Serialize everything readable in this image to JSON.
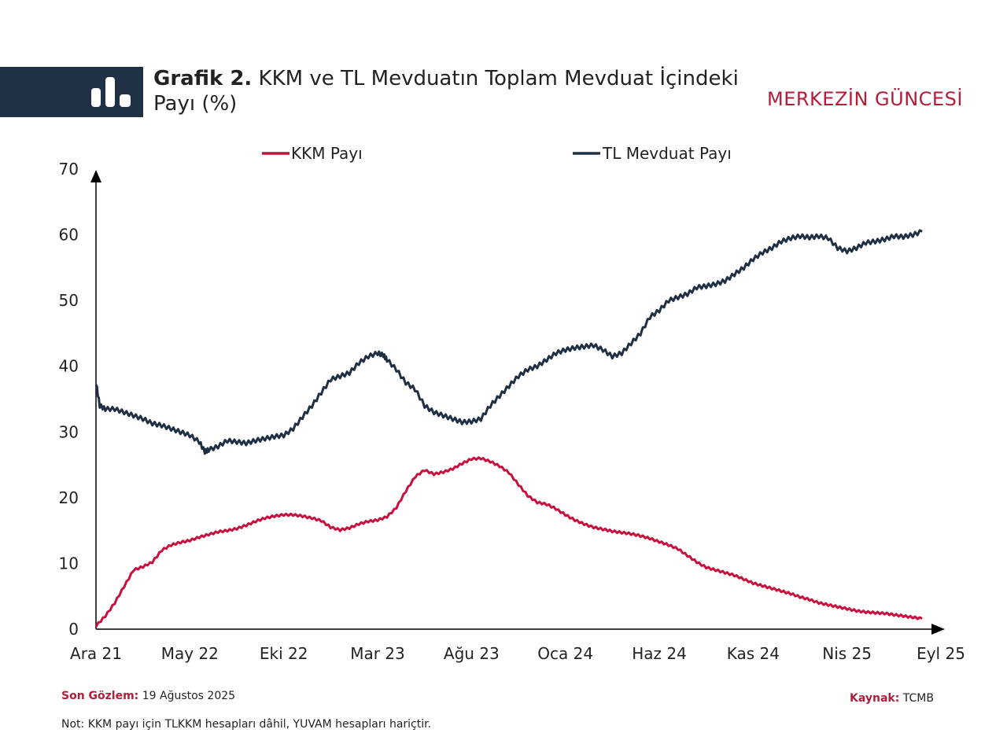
{
  "header": {
    "title_bold": "Grafik 2.",
    "title_text": " KKM ve TL Mevduatın Toplam Mevduat İçindeki Payı (%)",
    "brand": "MERKEZİN GÜNCESİ"
  },
  "footer": {
    "last_obs_label": "Son Gözlem:",
    "last_obs_value": " 19 Ağustos 2025",
    "source_label": "Kaynak:",
    "source_value": " TCMB",
    "note": "Not: KKM payı için TLKKM hesapları dâhil, YUVAM hesapları hariçtir."
  },
  "colors": {
    "kkm": "#c8103e",
    "tl": "#1f3045",
    "brand": "#b21e3a"
  },
  "chart_data": {
    "type": "line",
    "title": "KKM ve TL Mevduatın Toplam Mevduat İçindeki Payı (%)",
    "xlabel": "",
    "ylabel": "",
    "ylim": [
      0,
      70
    ],
    "yticks": [
      0,
      10,
      20,
      30,
      40,
      50,
      60,
      70
    ],
    "xlim": [
      0,
      45
    ],
    "xticks": [
      {
        "x": 0,
        "label": "Ara 21"
      },
      {
        "x": 5,
        "label": "May 22"
      },
      {
        "x": 10,
        "label": "Eki 22"
      },
      {
        "x": 15,
        "label": "Mar 23"
      },
      {
        "x": 20,
        "label": "Ağu 23"
      },
      {
        "x": 25,
        "label": "Oca 24"
      },
      {
        "x": 30,
        "label": "Haz 24"
      },
      {
        "x": 35,
        "label": "Kas 24"
      },
      {
        "x": 40,
        "label": "Nis 25"
      },
      {
        "x": 45,
        "label": "Eyl 25"
      }
    ],
    "legend_position": "top",
    "series": [
      {
        "name": "KKM Payı",
        "color": "#c8103e",
        "points": [
          [
            0,
            0.5
          ],
          [
            0.5,
            2
          ],
          [
            1,
            4
          ],
          [
            1.5,
            6.5
          ],
          [
            2,
            9
          ],
          [
            2.5,
            9.5
          ],
          [
            3,
            10.2
          ],
          [
            3.5,
            12
          ],
          [
            4,
            12.8
          ],
          [
            4.5,
            13.2
          ],
          [
            5,
            13.5
          ],
          [
            5.5,
            14
          ],
          [
            6,
            14.4
          ],
          [
            6.5,
            14.8
          ],
          [
            7,
            15
          ],
          [
            7.5,
            15.3
          ],
          [
            8,
            15.8
          ],
          [
            8.5,
            16.4
          ],
          [
            9,
            16.9
          ],
          [
            9.5,
            17.2
          ],
          [
            10,
            17.4
          ],
          [
            10.5,
            17.4
          ],
          [
            11,
            17.2
          ],
          [
            11.5,
            16.9
          ],
          [
            12,
            16.5
          ],
          [
            12.5,
            15.5
          ],
          [
            13,
            15.1
          ],
          [
            13.5,
            15.4
          ],
          [
            14,
            16
          ],
          [
            14.5,
            16.4
          ],
          [
            15,
            16.6
          ],
          [
            15.5,
            17.1
          ],
          [
            16,
            18.5
          ],
          [
            16.5,
            21
          ],
          [
            17,
            23.2
          ],
          [
            17.5,
            24.2
          ],
          [
            18,
            23.6
          ],
          [
            18.5,
            23.9
          ],
          [
            19,
            24.4
          ],
          [
            19.5,
            25.2
          ],
          [
            20,
            25.9
          ],
          [
            20.5,
            26
          ],
          [
            21,
            25.5
          ],
          [
            21.5,
            24.8
          ],
          [
            22,
            23.8
          ],
          [
            22.5,
            22
          ],
          [
            23,
            20.3
          ],
          [
            23.5,
            19.3
          ],
          [
            24,
            19
          ],
          [
            24.5,
            18.3
          ],
          [
            25,
            17.4
          ],
          [
            25.5,
            16.6
          ],
          [
            26,
            16
          ],
          [
            26.5,
            15.5
          ],
          [
            27,
            15.2
          ],
          [
            27.5,
            14.9
          ],
          [
            28,
            14.7
          ],
          [
            28.5,
            14.5
          ],
          [
            29,
            14.2
          ],
          [
            29.5,
            13.8
          ],
          [
            30,
            13.3
          ],
          [
            30.5,
            12.8
          ],
          [
            31,
            12.2
          ],
          [
            31.5,
            11.2
          ],
          [
            32,
            10.2
          ],
          [
            32.5,
            9.4
          ],
          [
            33,
            9
          ],
          [
            33.5,
            8.6
          ],
          [
            34,
            8.2
          ],
          [
            34.5,
            7.6
          ],
          [
            35,
            7
          ],
          [
            35.5,
            6.6
          ],
          [
            36,
            6.2
          ],
          [
            36.5,
            5.8
          ],
          [
            37,
            5.4
          ],
          [
            37.5,
            4.9
          ],
          [
            38,
            4.5
          ],
          [
            38.5,
            4
          ],
          [
            39,
            3.7
          ],
          [
            39.5,
            3.4
          ],
          [
            40,
            3.1
          ],
          [
            40.5,
            2.8
          ],
          [
            41,
            2.6
          ],
          [
            41.5,
            2.5
          ],
          [
            42,
            2.4
          ],
          [
            42.5,
            2.2
          ],
          [
            43,
            2
          ],
          [
            43.5,
            1.8
          ],
          [
            44,
            1.6
          ]
        ]
      },
      {
        "name": "TL Mevduat Payı",
        "color": "#1f3045",
        "points": [
          [
            0,
            37.5
          ],
          [
            0.2,
            34
          ],
          [
            0.5,
            33.5
          ],
          [
            1,
            33.5
          ],
          [
            1.5,
            33
          ],
          [
            2,
            32.5
          ],
          [
            2.5,
            32
          ],
          [
            3,
            31.3
          ],
          [
            3.5,
            31
          ],
          [
            4,
            30.5
          ],
          [
            4.5,
            30
          ],
          [
            5,
            29.5
          ],
          [
            5.5,
            28.5
          ],
          [
            5.8,
            27
          ],
          [
            6,
            27.3
          ],
          [
            6.5,
            27.8
          ],
          [
            7,
            28.7
          ],
          [
            7.5,
            28.5
          ],
          [
            8,
            28.3
          ],
          [
            8.5,
            28.7
          ],
          [
            9,
            29
          ],
          [
            9.5,
            29.3
          ],
          [
            10,
            29.5
          ],
          [
            10.5,
            30.5
          ],
          [
            11,
            32.3
          ],
          [
            11.5,
            34
          ],
          [
            12,
            36
          ],
          [
            12.5,
            38
          ],
          [
            13,
            38.5
          ],
          [
            13.5,
            39
          ],
          [
            14,
            40.5
          ],
          [
            14.5,
            41.5
          ],
          [
            15,
            42
          ],
          [
            15.3,
            41.7
          ],
          [
            15.5,
            41
          ],
          [
            16,
            39.5
          ],
          [
            16.5,
            37.5
          ],
          [
            17,
            36.5
          ],
          [
            17.5,
            34
          ],
          [
            18,
            33
          ],
          [
            18.5,
            32.5
          ],
          [
            19,
            32
          ],
          [
            19.5,
            31.5
          ],
          [
            20,
            31.6
          ],
          [
            20.5,
            32
          ],
          [
            21,
            34
          ],
          [
            21.5,
            35.5
          ],
          [
            22,
            37
          ],
          [
            22.5,
            38.5
          ],
          [
            23,
            39.5
          ],
          [
            23.5,
            40
          ],
          [
            24,
            41
          ],
          [
            24.5,
            42
          ],
          [
            25,
            42.5
          ],
          [
            25.5,
            42.8
          ],
          [
            26,
            43
          ],
          [
            26.5,
            43.2
          ],
          [
            27,
            42.5
          ],
          [
            27.5,
            41.5
          ],
          [
            28,
            42
          ],
          [
            28.5,
            43.5
          ],
          [
            29,
            45
          ],
          [
            29.5,
            47.5
          ],
          [
            30,
            48.5
          ],
          [
            30.5,
            50
          ],
          [
            31,
            50.5
          ],
          [
            31.5,
            51
          ],
          [
            32,
            52
          ],
          [
            32.5,
            52.2
          ],
          [
            33,
            52.5
          ],
          [
            33.5,
            53
          ],
          [
            34,
            54
          ],
          [
            34.5,
            55
          ],
          [
            35,
            56.3
          ],
          [
            35.5,
            57.3
          ],
          [
            36,
            58
          ],
          [
            36.5,
            59
          ],
          [
            37,
            59.5
          ],
          [
            37.5,
            59.8
          ],
          [
            38,
            59.6
          ],
          [
            38.5,
            59.8
          ],
          [
            39,
            59.5
          ],
          [
            39.5,
            58
          ],
          [
            40,
            57.5
          ],
          [
            40.5,
            58
          ],
          [
            41,
            58.8
          ],
          [
            41.5,
            59
          ],
          [
            42,
            59.3
          ],
          [
            42.5,
            59.8
          ],
          [
            43,
            59.7
          ],
          [
            43.5,
            60
          ],
          [
            44,
            60.5
          ]
        ]
      }
    ]
  }
}
